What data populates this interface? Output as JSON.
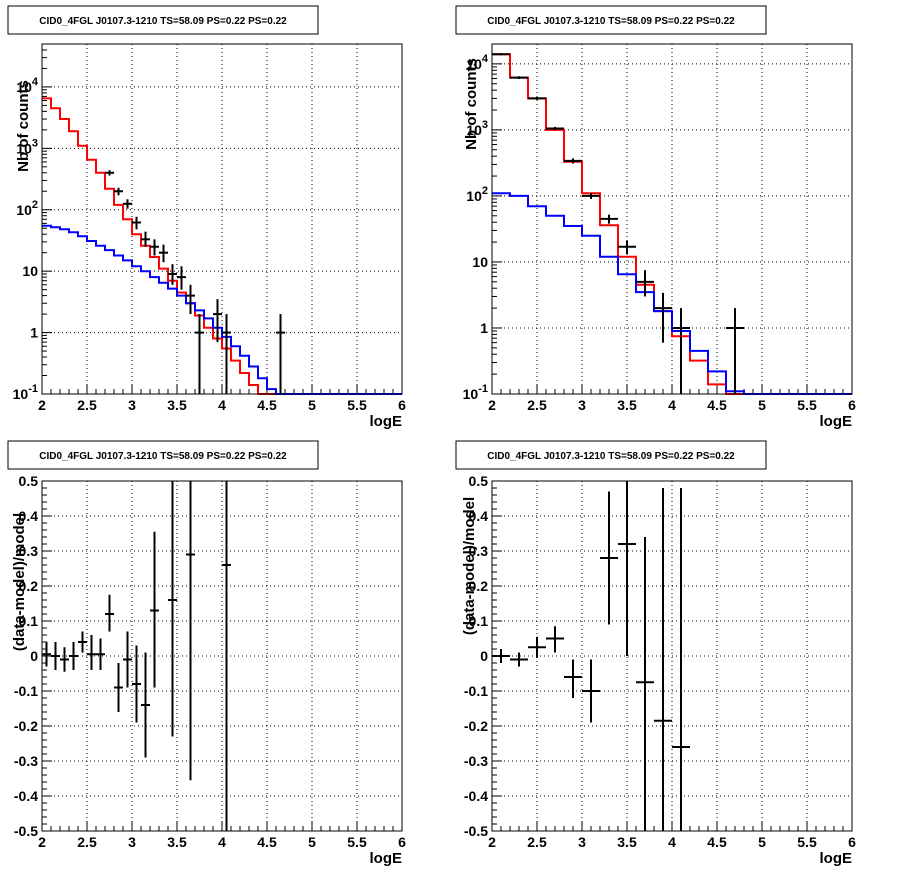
{
  "colors": {
    "data": "#000000",
    "total_model": "#ff0000",
    "component_model": "#0000ff",
    "frame": "#000000",
    "grid": "#000000"
  },
  "chart_data": [
    {
      "type": "line",
      "title": "CID0_4FGL J0107.3-1210 TS=58.09 PS=0.22 PS=0.22",
      "xlabel": "logE",
      "ylabel": "Nb of counts",
      "xlim": [
        2,
        6
      ],
      "ylim": [
        0.1,
        50000
      ],
      "log_y": true,
      "grid": true,
      "x_ticks": [
        "2",
        "2.5",
        "3",
        "3.5",
        "4",
        "4.5",
        "5",
        "5.5",
        "6"
      ],
      "y_ticks": [
        "10^-1",
        "1",
        "10",
        "10^2",
        "10^3",
        "10^4"
      ],
      "bin_width": 0.1,
      "series": [
        {
          "name": "",
          "role": "total_model",
          "bin_edges_start": 2.0,
          "values": [
            6500,
            4500,
            3000,
            1900,
            1100,
            650,
            400,
            220,
            120,
            70,
            40,
            26,
            17,
            11,
            7,
            4.5,
            3.0,
            1.9,
            1.2,
            0.8,
            0.55,
            0.35,
            0.22,
            0.14,
            0.1,
            0.1,
            0.1,
            0.1,
            0.1,
            0.1,
            0.1,
            0.1,
            0.1,
            0.1,
            0.1,
            0.1,
            0.1,
            0.1,
            0.1,
            0.1
          ]
        },
        {
          "name": "",
          "role": "component_model",
          "bin_edges_start": 2.0,
          "values": [
            55,
            52,
            48,
            43,
            37,
            31,
            26,
            22,
            18,
            15,
            12,
            10,
            8,
            6.5,
            5.2,
            4.0,
            3.0,
            2.3,
            1.7,
            1.2,
            0.85,
            0.6,
            0.42,
            0.28,
            0.18,
            0.12,
            0.1,
            0.1,
            0.1,
            0.1,
            0.1,
            0.1,
            0.1,
            0.1,
            0.1,
            0.1,
            0.1,
            0.1,
            0.1,
            0.1
          ]
        },
        {
          "name": "",
          "role": "data",
          "points": [
            {
              "x": 2.75,
              "y": 400,
              "ylo": 360,
              "yhi": 440
            },
            {
              "x": 2.85,
              "y": 200,
              "ylo": 172,
              "yhi": 228
            },
            {
              "x": 2.95,
              "y": 125,
              "ylo": 104,
              "yhi": 148
            },
            {
              "x": 3.05,
              "y": 62,
              "ylo": 48,
              "yhi": 77
            },
            {
              "x": 3.15,
              "y": 33,
              "ylo": 25,
              "yhi": 44
            },
            {
              "x": 3.25,
              "y": 25,
              "ylo": 18,
              "yhi": 33
            },
            {
              "x": 3.35,
              "y": 20,
              "ylo": 14,
              "yhi": 27
            },
            {
              "x": 3.45,
              "y": 9,
              "ylo": 6,
              "yhi": 13
            },
            {
              "x": 3.55,
              "y": 8,
              "ylo": 5,
              "yhi": 12
            },
            {
              "x": 3.65,
              "y": 4,
              "ylo": 2,
              "yhi": 6
            },
            {
              "x": 3.75,
              "y": 1,
              "ylo": 0.1,
              "yhi": 2
            },
            {
              "x": 3.95,
              "y": 2,
              "ylo": 0.7,
              "yhi": 3.5
            },
            {
              "x": 4.05,
              "y": 1,
              "ylo": 0.1,
              "yhi": 2
            },
            {
              "x": 4.65,
              "y": 1,
              "ylo": 0.1,
              "yhi": 2
            }
          ]
        }
      ]
    },
    {
      "type": "line",
      "title": "CID0_4FGL J0107.3-1210 TS=58.09 PS=0.22 PS=0.22",
      "xlabel": "logE",
      "ylabel": "Nb of counts",
      "xlim": [
        2,
        6
      ],
      "ylim": [
        0.1,
        20000
      ],
      "log_y": true,
      "grid": true,
      "x_ticks": [
        "2",
        "2.5",
        "3",
        "3.5",
        "4",
        "4.5",
        "5",
        "5.5",
        "6"
      ],
      "y_ticks": [
        "10^-1",
        "1",
        "10",
        "10^2",
        "10^3",
        "10^4"
      ],
      "bin_width": 0.2,
      "series": [
        {
          "name": "",
          "role": "total_model",
          "bin_edges_start": 2.0,
          "values": [
            14000,
            6200,
            3000,
            1000,
            330,
            110,
            36,
            12,
            4.5,
            1.8,
            0.75,
            0.32,
            0.14,
            0.1,
            0.1,
            0.1,
            0.1,
            0.1,
            0.1,
            0.1
          ]
        },
        {
          "name": "",
          "role": "component_model",
          "bin_edges_start": 2.0,
          "values": [
            110,
            100,
            70,
            50,
            35,
            25,
            12,
            6.5,
            3.5,
            1.8,
            0.9,
            0.45,
            0.22,
            0.11,
            0.1,
            0.1,
            0.1,
            0.1,
            0.1,
            0.1
          ]
        },
        {
          "name": "",
          "role": "data",
          "points": [
            {
              "x": 2.1,
              "y": 14000,
              "ylo": 13500,
              "yhi": 14500
            },
            {
              "x": 2.3,
              "y": 6200,
              "ylo": 5900,
              "yhi": 6500
            },
            {
              "x": 2.5,
              "y": 3000,
              "ylo": 2850,
              "yhi": 3150
            },
            {
              "x": 2.7,
              "y": 1050,
              "ylo": 990,
              "yhi": 1110
            },
            {
              "x": 2.9,
              "y": 340,
              "ylo": 310,
              "yhi": 370
            },
            {
              "x": 3.1,
              "y": 100,
              "ylo": 90,
              "yhi": 110
            },
            {
              "x": 3.3,
              "y": 45,
              "ylo": 38,
              "yhi": 52
            },
            {
              "x": 3.5,
              "y": 17,
              "ylo": 13,
              "yhi": 21
            },
            {
              "x": 3.7,
              "y": 5,
              "ylo": 3,
              "yhi": 7.5
            },
            {
              "x": 3.9,
              "y": 2,
              "ylo": 0.6,
              "yhi": 3.4
            },
            {
              "x": 4.1,
              "y": 1,
              "ylo": 0.1,
              "yhi": 2
            },
            {
              "x": 4.7,
              "y": 1,
              "ylo": 0.1,
              "yhi": 2
            }
          ]
        }
      ]
    },
    {
      "type": "scatter",
      "title": "CID0_4FGL J0107.3-1210 TS=58.09 PS=0.22 PS=0.22",
      "xlabel": "logE",
      "ylabel": "(data-model)/model",
      "xlim": [
        2,
        6
      ],
      "ylim": [
        -0.5,
        0.5
      ],
      "grid": true,
      "x_ticks": [
        "2",
        "2.5",
        "3",
        "3.5",
        "4",
        "4.5",
        "5",
        "5.5",
        "6"
      ],
      "y_ticks": [
        "-0.5",
        "-0.4",
        "-0.3",
        "-0.2",
        "-0.1",
        "0",
        "0.1",
        "0.2",
        "0.3",
        "0.4",
        "0.5"
      ],
      "bin_width": 0.1,
      "series": [
        {
          "name": "",
          "role": "data",
          "points": [
            {
              "x": 2.05,
              "y": 0.005,
              "ylo": -0.03,
              "yhi": 0.04
            },
            {
              "x": 2.15,
              "y": 0.0,
              "ylo": -0.04,
              "yhi": 0.04
            },
            {
              "x": 2.25,
              "y": -0.01,
              "ylo": -0.045,
              "yhi": 0.025
            },
            {
              "x": 2.35,
              "y": 0.0,
              "ylo": -0.04,
              "yhi": 0.04
            },
            {
              "x": 2.45,
              "y": 0.04,
              "ylo": 0.01,
              "yhi": 0.07
            },
            {
              "x": 2.55,
              "y": 0.005,
              "ylo": -0.04,
              "yhi": 0.06
            },
            {
              "x": 2.65,
              "y": 0.005,
              "ylo": -0.04,
              "yhi": 0.05
            },
            {
              "x": 2.75,
              "y": 0.12,
              "ylo": 0.07,
              "yhi": 0.175
            },
            {
              "x": 2.85,
              "y": -0.09,
              "ylo": -0.16,
              "yhi": -0.02
            },
            {
              "x": 2.95,
              "y": -0.01,
              "ylo": -0.09,
              "yhi": 0.07
            },
            {
              "x": 3.05,
              "y": -0.08,
              "ylo": -0.19,
              "yhi": 0.03
            },
            {
              "x": 3.15,
              "y": -0.14,
              "ylo": -0.29,
              "yhi": 0.01
            },
            {
              "x": 3.25,
              "y": 0.13,
              "ylo": -0.09,
              "yhi": 0.355
            },
            {
              "x": 3.45,
              "y": 0.16,
              "ylo": -0.23,
              "yhi": 0.5
            },
            {
              "x": 3.65,
              "y": 0.29,
              "ylo": -0.355,
              "yhi": 0.5
            },
            {
              "x": 4.05,
              "y": 0.26,
              "ylo": -0.5,
              "yhi": 0.5
            }
          ]
        }
      ]
    },
    {
      "type": "scatter",
      "title": "CID0_4FGL J0107.3-1210 TS=58.09 PS=0.22 PS=0.22",
      "xlabel": "logE",
      "ylabel": "(data-model)/model",
      "xlim": [
        2,
        6
      ],
      "ylim": [
        -0.5,
        0.5
      ],
      "grid": true,
      "x_ticks": [
        "2",
        "2.5",
        "3",
        "3.5",
        "4",
        "4.5",
        "5",
        "5.5",
        "6"
      ],
      "y_ticks": [
        "-0.5",
        "-0.4",
        "-0.3",
        "-0.2",
        "-0.1",
        "0",
        "0.1",
        "0.2",
        "0.3",
        "0.4",
        "0.5"
      ],
      "bin_width": 0.2,
      "series": [
        {
          "name": "",
          "role": "data",
          "points": [
            {
              "x": 2.1,
              "y": 0.0,
              "ylo": -0.02,
              "yhi": 0.02
            },
            {
              "x": 2.3,
              "y": -0.01,
              "ylo": -0.03,
              "yhi": 0.01
            },
            {
              "x": 2.5,
              "y": 0.025,
              "ylo": -0.005,
              "yhi": 0.055
            },
            {
              "x": 2.7,
              "y": 0.05,
              "ylo": 0.01,
              "yhi": 0.085
            },
            {
              "x": 2.9,
              "y": -0.06,
              "ylo": -0.12,
              "yhi": -0.01
            },
            {
              "x": 3.1,
              "y": -0.1,
              "ylo": -0.19,
              "yhi": -0.01
            },
            {
              "x": 3.3,
              "y": 0.28,
              "ylo": 0.09,
              "yhi": 0.47
            },
            {
              "x": 3.5,
              "y": 0.32,
              "ylo": 0.0,
              "yhi": 0.5
            },
            {
              "x": 3.7,
              "y": -0.075,
              "ylo": -0.5,
              "yhi": 0.34
            },
            {
              "x": 3.9,
              "y": -0.185,
              "ylo": -0.5,
              "yhi": 0.48
            },
            {
              "x": 4.1,
              "y": -0.26,
              "ylo": -0.5,
              "yhi": 0.48
            }
          ]
        }
      ]
    }
  ]
}
